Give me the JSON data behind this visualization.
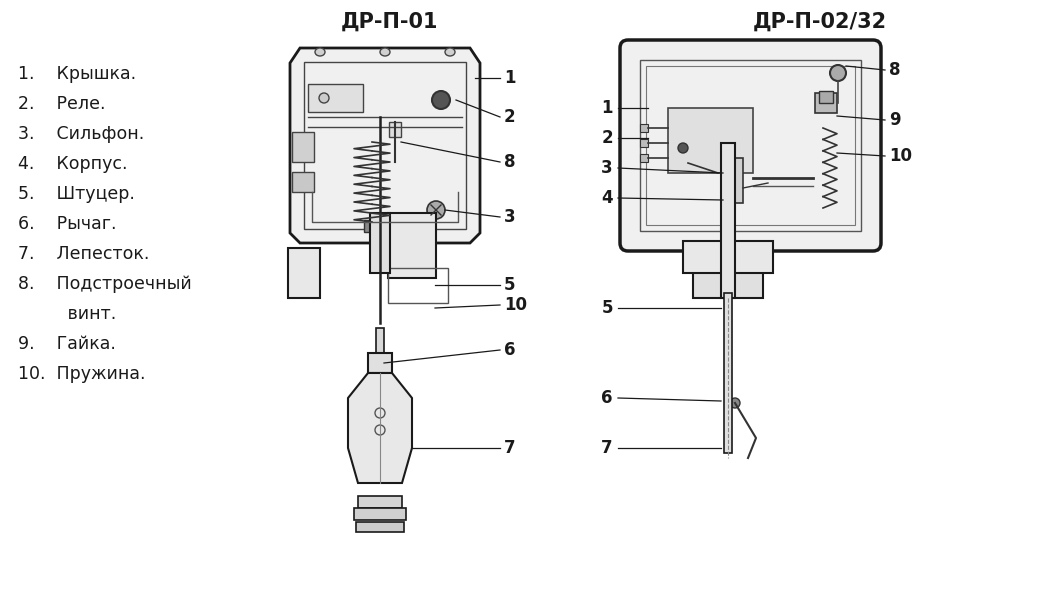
{
  "title1": "ДР-П-01",
  "title2": "ДР-П-02/32",
  "bg_color": "#ffffff",
  "lc": "#1a1a1a",
  "list_items": [
    "1.    Крышка.",
    "2.    Реле.",
    "3.    Сильфон.",
    "4.    Корпус.",
    "5.    Штуцер.",
    "6.    Рычаг.",
    "7.    Лепесток.",
    "8.    Подстроечный",
    "         винт.",
    "9.    Гайка.",
    "10.  Пружина."
  ],
  "figsize": [
    10.57,
    5.92
  ],
  "dpi": 100
}
